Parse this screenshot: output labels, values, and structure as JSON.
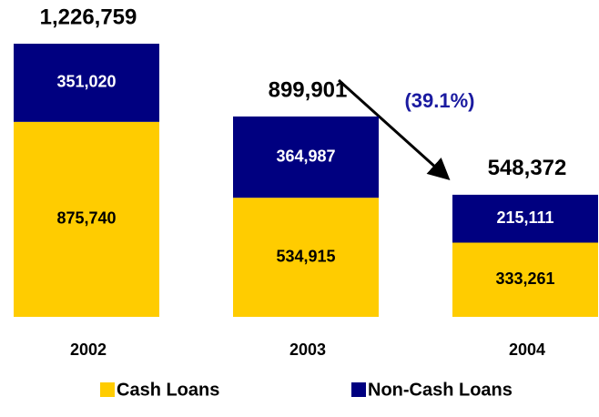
{
  "chart_data": {
    "type": "stacked-bar",
    "categories": [
      "2002",
      "2003",
      "2004"
    ],
    "series": [
      {
        "name": "Cash Loans",
        "color": "#ffcc00",
        "label_color": "#000000",
        "values": [
          875740,
          534915,
          333261
        ],
        "value_labels": [
          "875,740",
          "534,915",
          "333,261"
        ]
      },
      {
        "name": "Non-Cash Loans",
        "color": "#000080",
        "label_color": "#ffffff",
        "values": [
          351020,
          364987,
          215111
        ],
        "value_labels": [
          "351,020",
          "364,987",
          "215,111"
        ]
      }
    ],
    "totals": [
      1226759,
      899901,
      548372
    ],
    "total_labels": [
      "1,226,759",
      "899,901",
      "548,372"
    ],
    "annotation": {
      "text": "(39.1%)",
      "color": "#1a1aa0"
    }
  }
}
